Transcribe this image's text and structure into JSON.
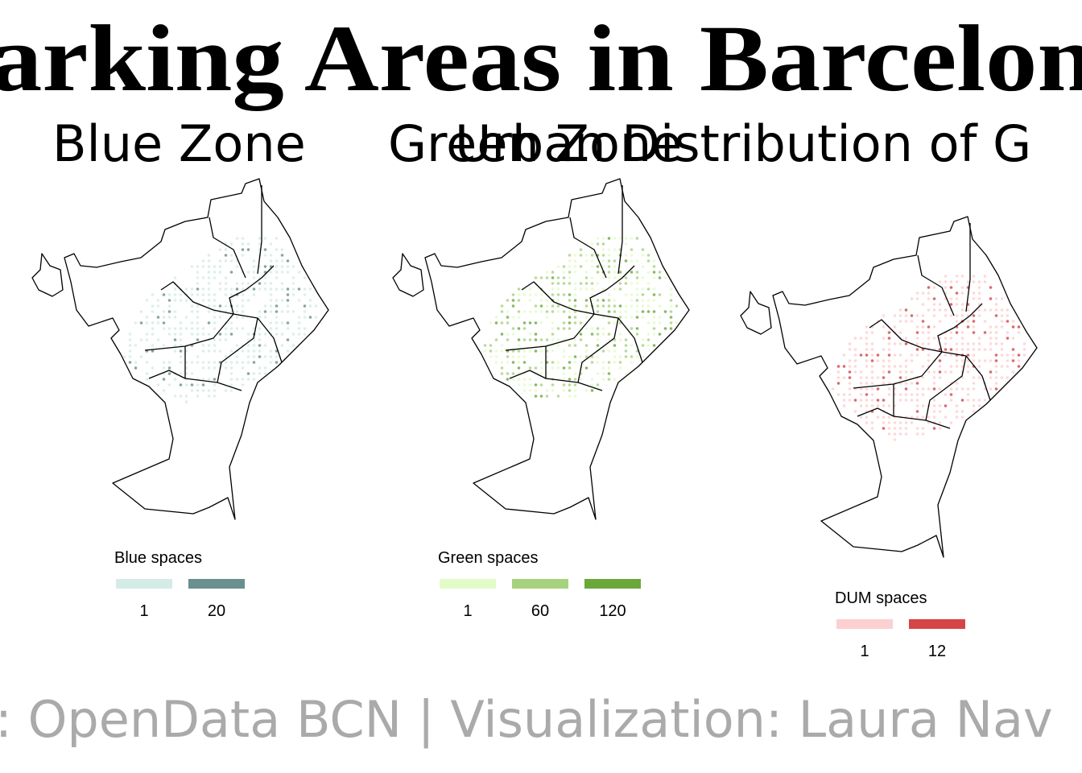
{
  "header": {
    "title": "arking Areas in Barcelon",
    "caption": ": OpenData BCN | Visualization: Laura Nav"
  },
  "panels": [
    {
      "subtitle": "Blue Zone",
      "legend": {
        "title": "Blue spaces",
        "keys": [
          {
            "label": 1,
            "color": "#d3ece6"
          },
          {
            "label": 20,
            "color": "#6a8f8f"
          }
        ]
      }
    },
    {
      "subtitle": "Green Zone",
      "legend": {
        "title": "Green spaces",
        "keys": [
          {
            "label": 1,
            "color": "#e3fbc9"
          },
          {
            "label": 60,
            "color": "#a6d27e"
          },
          {
            "label": 120,
            "color": "#6aa83a"
          }
        ]
      }
    },
    {
      "subtitle": "Urban Distribution of G",
      "legend": {
        "title": "DUM spaces",
        "keys": [
          {
            "label": 1,
            "color": "#fcd0d0"
          },
          {
            "label": 12,
            "color": "#d64545"
          }
        ]
      }
    }
  ]
}
